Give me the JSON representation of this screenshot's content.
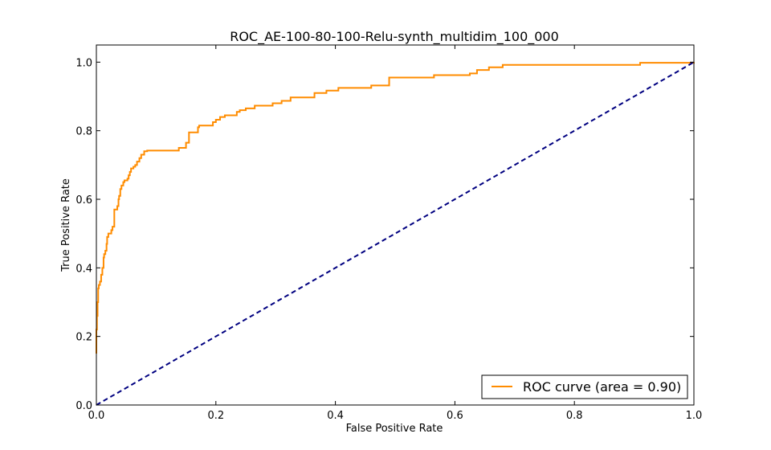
{
  "chart_data": {
    "type": "line",
    "title": "ROC_AE-100-80-100-Relu-synth_multidim_100_000",
    "xlabel": "False Positive Rate",
    "ylabel": "True Positive Rate",
    "xlim": [
      0.0,
      1.0
    ],
    "ylim": [
      0.0,
      1.05
    ],
    "x_ticks": [
      "0.0",
      "0.2",
      "0.4",
      "0.6",
      "0.8",
      "1.0"
    ],
    "y_ticks": [
      "0.0",
      "0.2",
      "0.4",
      "0.6",
      "0.8",
      "1.0"
    ],
    "legend_position": "lower-right",
    "grid": false,
    "series": [
      {
        "name": "ROC curve (area = 0.90)",
        "color": "#ff8c00",
        "style": "solid",
        "x": [
          0.0,
          0.0,
          0.001,
          0.002,
          0.003,
          0.004,
          0.006,
          0.008,
          0.01,
          0.012,
          0.013,
          0.015,
          0.017,
          0.018,
          0.02,
          0.022,
          0.024,
          0.025,
          0.027,
          0.03,
          0.033,
          0.035,
          0.037,
          0.038,
          0.04,
          0.042,
          0.045,
          0.047,
          0.048,
          0.05,
          0.052,
          0.054,
          0.056,
          0.058,
          0.062,
          0.065,
          0.068,
          0.072,
          0.075,
          0.08,
          0.085,
          0.088,
          0.092,
          0.095,
          0.1,
          0.138,
          0.15,
          0.155,
          0.16,
          0.17,
          0.172,
          0.195,
          0.2,
          0.207,
          0.215,
          0.235,
          0.24,
          0.25,
          0.265,
          0.295,
          0.31,
          0.325,
          0.365,
          0.385,
          0.405,
          0.46,
          0.49,
          0.565,
          0.625,
          0.637,
          0.657,
          0.68,
          0.91,
          1.0
        ],
        "y": [
          0.15,
          0.22,
          0.26,
          0.3,
          0.34,
          0.35,
          0.36,
          0.38,
          0.4,
          0.43,
          0.44,
          0.45,
          0.47,
          0.49,
          0.5,
          0.5,
          0.5,
          0.51,
          0.52,
          0.57,
          0.57,
          0.58,
          0.6,
          0.61,
          0.63,
          0.64,
          0.65,
          0.655,
          0.655,
          0.655,
          0.66,
          0.67,
          0.68,
          0.69,
          0.695,
          0.7,
          0.71,
          0.72,
          0.73,
          0.74,
          0.742,
          0.742,
          0.742,
          0.742,
          0.742,
          0.75,
          0.765,
          0.795,
          0.795,
          0.81,
          0.815,
          0.825,
          0.832,
          0.84,
          0.845,
          0.855,
          0.86,
          0.865,
          0.873,
          0.88,
          0.887,
          0.897,
          0.91,
          0.917,
          0.925,
          0.932,
          0.955,
          0.962,
          0.967,
          0.977,
          0.985,
          0.992,
          0.998,
          1.0
        ]
      },
      {
        "color": "#000080",
        "style": "dashed",
        "x": [
          0.0,
          1.0
        ],
        "y": [
          0.0,
          1.0
        ]
      }
    ]
  }
}
